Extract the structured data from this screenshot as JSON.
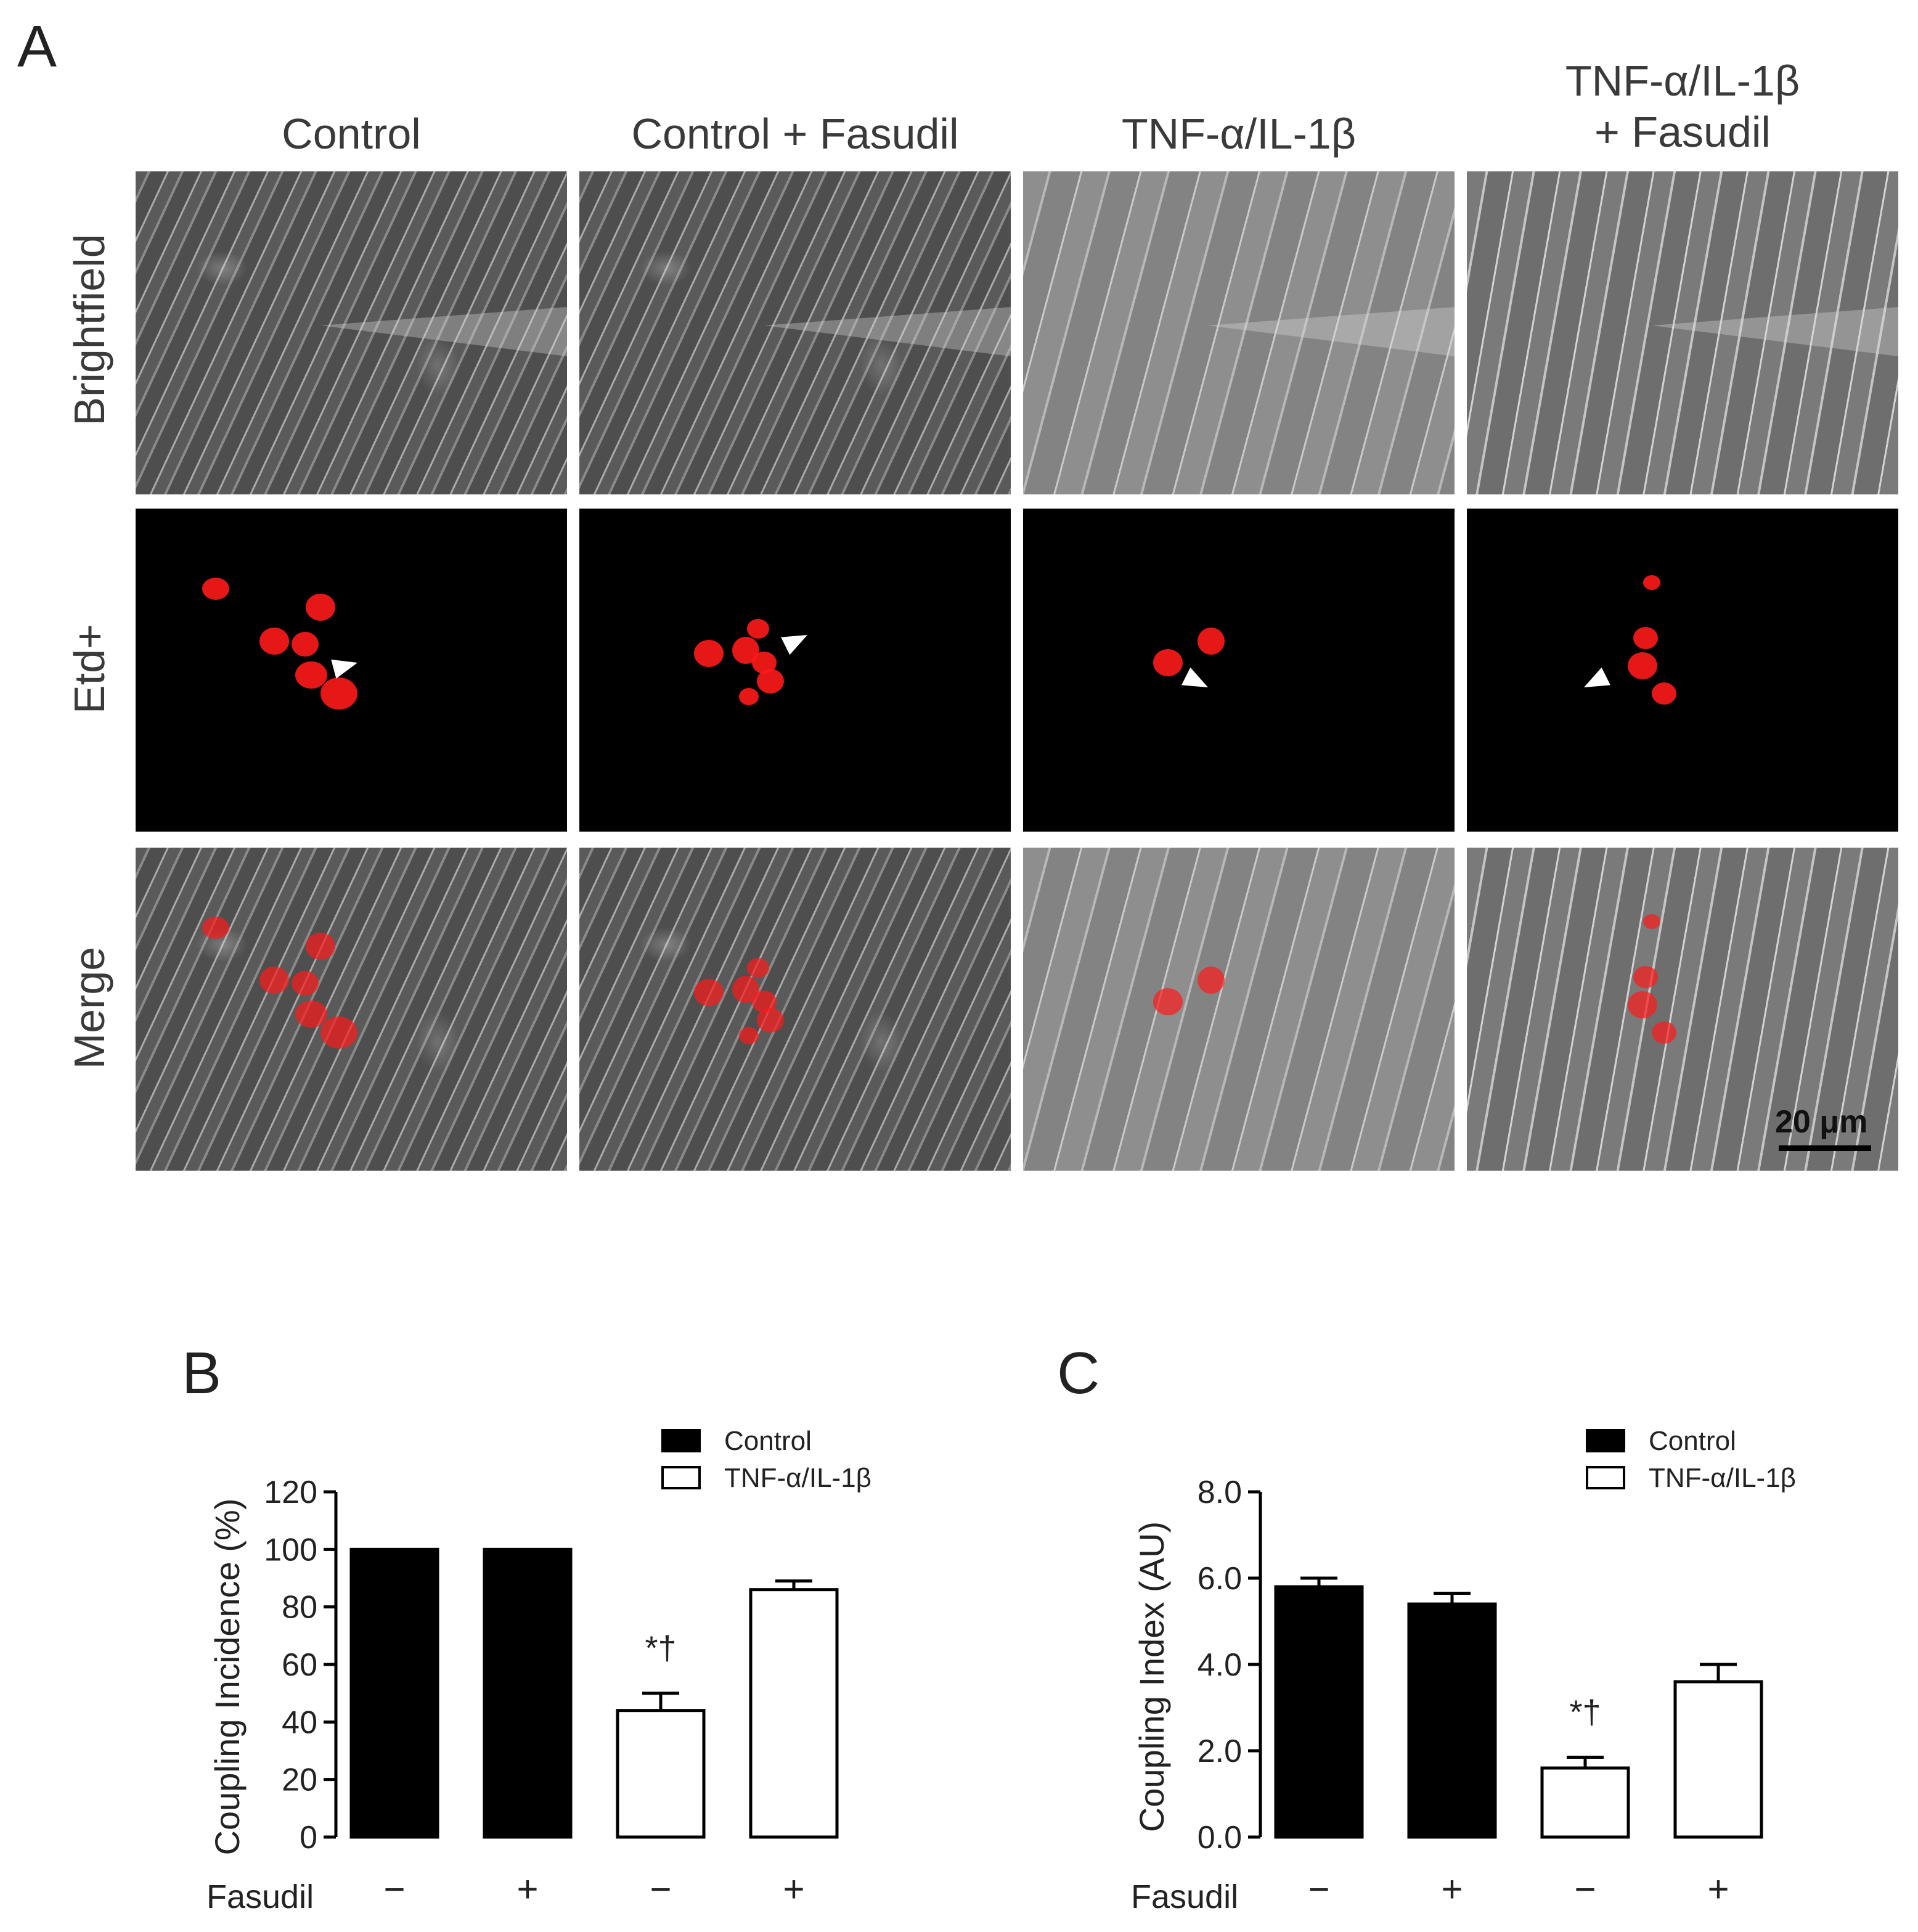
{
  "figure": {
    "panel_labels": {
      "a": "A",
      "b": "B",
      "c": "C"
    },
    "columns": [
      "Control",
      "Control + Fasudil",
      "TNF-α/IL-1β",
      "TNF-α/IL-1β\n+ Fasudil"
    ],
    "columns_lines": [
      [
        "Control"
      ],
      [
        "Control + Fasudil"
      ],
      [
        "TNF-α/IL-1β"
      ],
      [
        "TNF-α/IL-1β",
        "+ Fasudil"
      ]
    ],
    "rows": [
      "Brightfield",
      "Etd+",
      "Merge"
    ],
    "scale_bar": "20 μm",
    "colors": {
      "nuclei": "#ff1a1a",
      "control_bar": "#000000",
      "tnf_bar": "#ffffff"
    }
  },
  "chart_data": [
    {
      "type": "bar",
      "panel": "B",
      "ylabel": "Coupling Incidence (%)",
      "ylim": [
        0,
        120
      ],
      "yticks": [
        "0",
        "20",
        "40",
        "60",
        "80",
        "100",
        "120"
      ],
      "x_row_label": "Fasudil",
      "categories": [
        "−",
        "+",
        "−",
        "+"
      ],
      "legend": [
        "Control",
        "TNF-α/IL-1β"
      ],
      "series": [
        {
          "name": "Control",
          "values": [
            100,
            100,
            null,
            null
          ],
          "errors": [
            0,
            0,
            null,
            null
          ]
        },
        {
          "name": "TNF-α/IL-1β",
          "values": [
            null,
            null,
            44,
            86
          ],
          "errors": [
            null,
            null,
            6,
            3
          ]
        }
      ],
      "annotations": [
        {
          "category_index": 2,
          "text": "*†"
        }
      ]
    },
    {
      "type": "bar",
      "panel": "C",
      "ylabel": "Coupling Index (AU)",
      "ylim": [
        0,
        8
      ],
      "yticks": [
        "0.0",
        "2.0",
        "4.0",
        "6.0",
        "8.0"
      ],
      "x_row_label": "Fasudil",
      "categories": [
        "−",
        "+",
        "−",
        "+"
      ],
      "legend": [
        "Control",
        "TNF-α/IL-1β"
      ],
      "series": [
        {
          "name": "Control",
          "values": [
            5.8,
            5.4,
            null,
            null
          ],
          "errors": [
            0.2,
            0.25,
            null,
            null
          ]
        },
        {
          "name": "TNF-α/IL-1β",
          "values": [
            null,
            null,
            1.6,
            3.6
          ],
          "errors": [
            null,
            null,
            0.25,
            0.4
          ]
        }
      ],
      "annotations": [
        {
          "category_index": 2,
          "text": "*†"
        }
      ]
    }
  ]
}
